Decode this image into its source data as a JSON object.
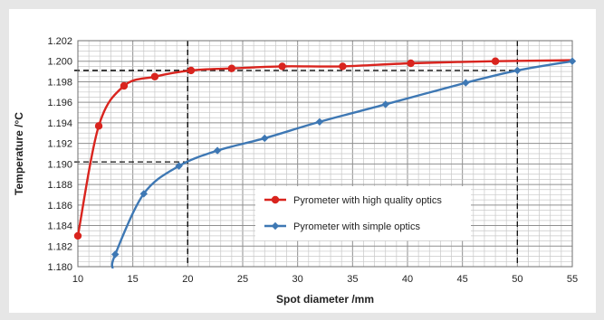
{
  "chart_data": {
    "type": "line",
    "xlabel": "Spot diameter /mm",
    "ylabel": "Temperature /°C",
    "xlim": [
      10,
      55
    ],
    "ylim": [
      1.18,
      1.202
    ],
    "x_major_ticks": [
      "10",
      "15",
      "20",
      "25",
      "30",
      "35",
      "40",
      "45",
      "50",
      "55"
    ],
    "y_major_ticks": [
      "1.180",
      "1.182",
      "1.184",
      "1.186",
      "1.188",
      "1.190",
      "1.192",
      "1.194",
      "1.196",
      "1.198",
      "1.200",
      "1.202"
    ],
    "grid": true,
    "legend_placement": "lower-right",
    "series": [
      {
        "name": "Pyrometer with high quality optics",
        "color": "#d9241e",
        "marker": "circle",
        "x": [
          10,
          11.9,
          14.2,
          17,
          20.3,
          24,
          28.6,
          34.1,
          40.3,
          48,
          55
        ],
        "y": [
          1.183,
          1.1937,
          1.1976,
          1.1985,
          1.1991,
          1.1993,
          1.1995,
          1.1995,
          1.1998,
          1.2,
          1.2001
        ]
      },
      {
        "name": "Pyrometer with simple optics",
        "color": "#3e78b4",
        "marker": "diamond",
        "x": [
          13.4,
          16,
          19.2,
          22.7,
          27,
          32,
          38,
          45.3,
          50,
          55
        ],
        "y": [
          1.1812,
          1.1871,
          1.1898,
          1.1913,
          1.1925,
          1.1941,
          1.1958,
          1.1979,
          1.1991,
          1.2
        ]
      }
    ],
    "reference_lines": [
      {
        "x": 20,
        "y": 1.1991
      },
      {
        "x": 20,
        "y": 1.1902
      },
      {
        "x": 50,
        "y": 1.1991
      }
    ]
  }
}
